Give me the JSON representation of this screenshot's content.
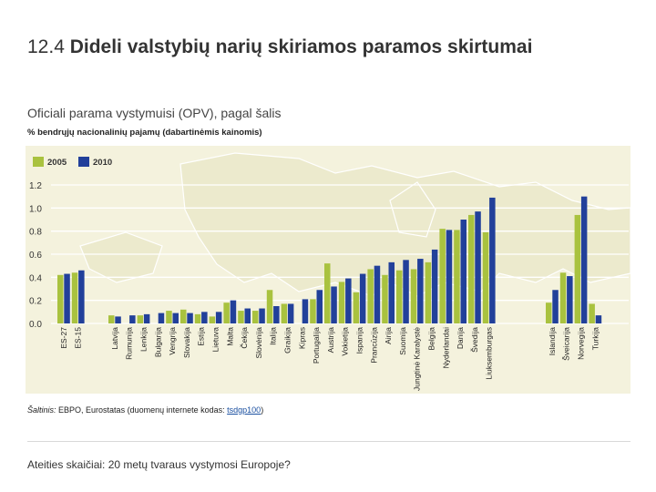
{
  "slide": {
    "title_number": "12.4",
    "title_text": "Dideli valstybių narių skiriamos paramos skirtumai",
    "subtitle": "Oficiali parama vystymuisi (OPV), pagal šalis",
    "unit": "% bendrųjų nacionalinių pajamų (dabartinėmis kainomis)",
    "source_label": "Šaltinis:",
    "source_text": "EBPO, Eurostatas (duomenų internete kodas:",
    "source_code": "tsdgp100",
    "source_close": ")",
    "footer": "Ateities skaičiai: 20 metų tvaraus vystymosi Europoje?"
  },
  "chart_data": {
    "type": "bar",
    "title": "Oficiali parama vystymuisi (OPV), pagal šalis",
    "ylabel": "% bendrųjų nacionalinių pajamų (dabartinėmis kainomis)",
    "xlabel": "",
    "ylim": [
      0,
      1.2
    ],
    "yticks": [
      "0.0",
      "0.2",
      "0.4",
      "0.6",
      "0.8",
      "1.0",
      "1.2"
    ],
    "legend_position": "top-left",
    "colors": {
      "2005": "#a9c23f",
      "2010": "#22409a"
    },
    "categories": [
      "ES-27",
      "ES-15",
      "Latvija",
      "Rumunija",
      "Lenkija",
      "Bulgarija",
      "Vengrija",
      "Slovakija",
      "Estija",
      "Lietuva",
      "Malta",
      "Čekija",
      "Slovėnija",
      "Italija",
      "Graikija",
      "Kipras",
      "Portugalija",
      "Austrija",
      "Vokietija",
      "Ispanija",
      "Prancūzija",
      "Airija",
      "Suomija",
      "Jungtinė Karalystė",
      "Belgija",
      "Nyderlandai",
      "Danija",
      "Švedija",
      "Liuksemburgas",
      "Islandija",
      "Šveicarija",
      "Norvegija",
      "Turkija"
    ],
    "series": [
      {
        "name": "2005",
        "values": [
          0.42,
          0.44,
          0.07,
          null,
          0.07,
          null,
          0.11,
          0.12,
          0.08,
          0.06,
          0.18,
          0.11,
          0.11,
          0.29,
          0.17,
          null,
          0.21,
          0.52,
          0.36,
          0.27,
          0.47,
          0.42,
          0.46,
          0.47,
          0.53,
          0.82,
          0.81,
          0.94,
          0.79,
          0.18,
          0.44,
          0.94,
          0.17
        ]
      },
      {
        "name": "2010",
        "values": [
          0.43,
          0.46,
          0.06,
          0.07,
          0.08,
          0.09,
          0.09,
          0.09,
          0.1,
          0.1,
          0.2,
          0.13,
          0.13,
          0.15,
          0.17,
          0.21,
          0.29,
          0.32,
          0.39,
          0.43,
          0.5,
          0.53,
          0.55,
          0.56,
          0.64,
          0.81,
          0.9,
          0.97,
          1.09,
          0.29,
          0.41,
          1.1,
          0.07
        ]
      }
    ]
  }
}
